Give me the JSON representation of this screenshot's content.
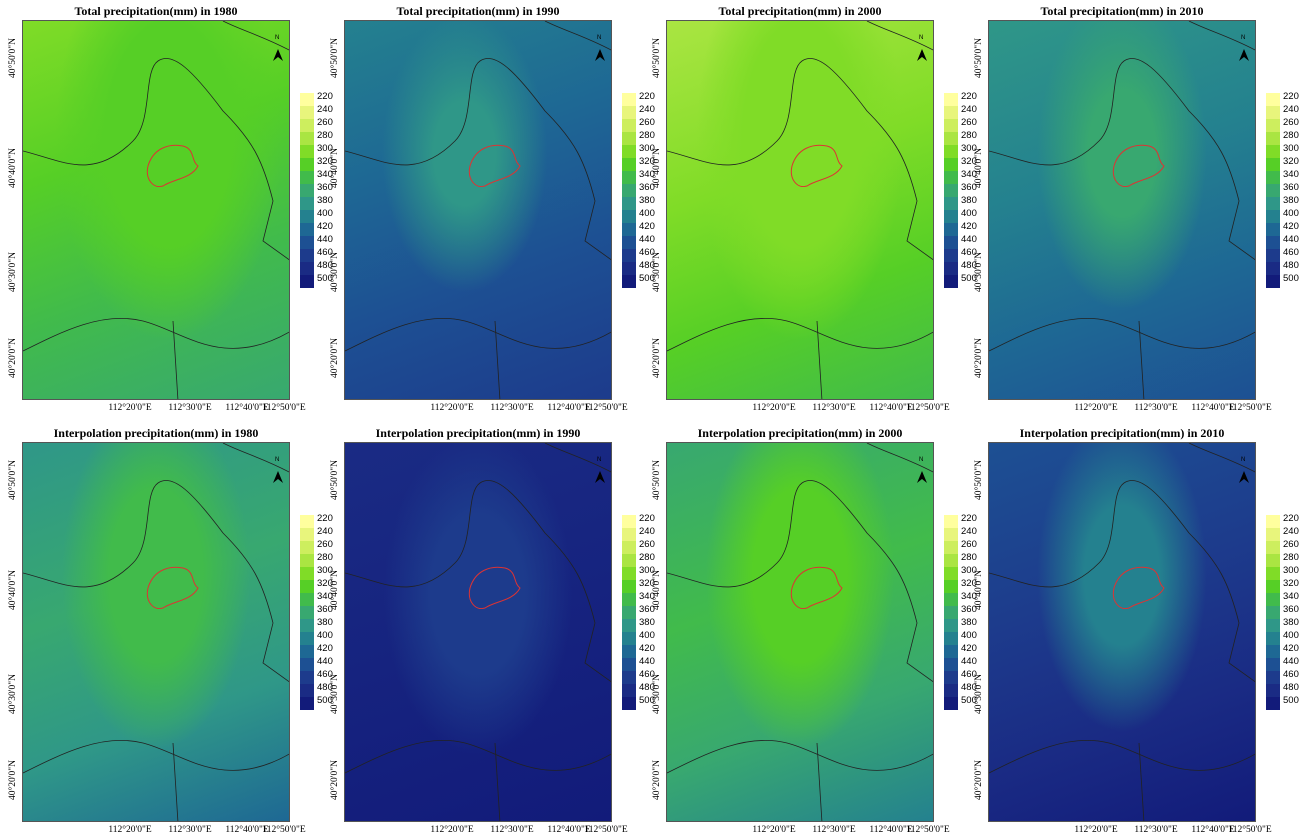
{
  "panels": [
    {
      "title": "Total precipitation(mm) in 1980"
    },
    {
      "title": "Total precipitation(mm) in 1990"
    },
    {
      "title": "Total precipitation(mm) in 2000"
    },
    {
      "title": "Total precipitation(mm) in 2010"
    },
    {
      "title": "Interpolation precipitation(mm) in 1980"
    },
    {
      "title": "Interpolation precipitation(mm) in 1990"
    },
    {
      "title": "Interpolation precipitation(mm) in 2000"
    },
    {
      "title": "Interpolation precipitation(mm) in 2010"
    }
  ],
  "axes": {
    "lat_labels": [
      "40°50'0\"N",
      "40°40'0\"N",
      "40°30'0\"N",
      "40°20'0\"N"
    ],
    "lon_labels": [
      "112°20'0\"E",
      "112°30'0\"E",
      "112°40'0\"E",
      "112°50'0\"E"
    ]
  },
  "north_label": "N",
  "legend": {
    "labels": [
      220,
      240,
      260,
      280,
      300,
      320,
      340,
      360,
      380,
      400,
      420,
      440,
      460,
      480,
      500
    ],
    "colors": [
      "#ffff9e",
      "#e8f57c",
      "#cdee5e",
      "#aae542",
      "#80dc27",
      "#56cf26",
      "#41bb4b",
      "#38a870",
      "#2f9788",
      "#24818f",
      "#1e6894",
      "#1d5093",
      "#1d3b8c",
      "#1a2b84",
      "#121b7a"
    ]
  }
}
